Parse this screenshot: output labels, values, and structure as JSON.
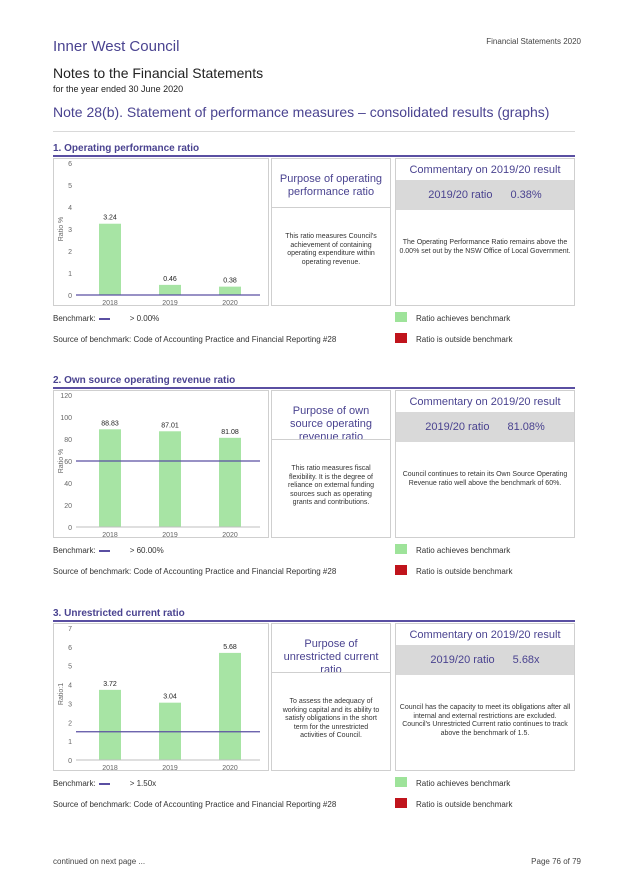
{
  "header": {
    "council": "Inner West Council",
    "report_label": "Financial Statements 2020",
    "notes_title": "Notes to the Financial Statements",
    "notes_subtitle": "for the year ended 30 June 2020",
    "note_heading": "Note 28(b). Statement of performance measures – consolidated results (graphs)"
  },
  "colors": {
    "bar": "#a7e4a4",
    "benchmark_line": "#5a4fa2",
    "legend_achieves": "#9ee39a",
    "legend_outside": "#c0141c",
    "accent": "#4a4390"
  },
  "sections": [
    {
      "title": "1. Operating performance ratio",
      "purpose_title": "Purpose of operating performance ratio",
      "purpose_text": "This ratio measures Council's achievement of containing operating expenditure within operating revenue.",
      "commentary_title": "Commentary on 2019/20 result",
      "ratio_label": "2019/20 ratio",
      "ratio_value": "0.38%",
      "commentary_text": "The Operating Performance Ratio remains above the 0.00% set out by the NSW Office of Local Government.",
      "benchmark_label": "Benchmark:",
      "benchmark_value": "> 0.00%",
      "source": "Source of benchmark: Code of Accounting Practice and Financial Reporting #28",
      "legend_achieves": "Ratio achieves benchmark",
      "legend_outside": "Ratio is outside benchmark"
    },
    {
      "title": "2. Own source operating revenue ratio",
      "purpose_title": "Purpose of own source operating revenue ratio",
      "purpose_text": "This ratio measures fiscal flexibility. It is the degree of reliance on external funding sources such as operating grants and contributions.",
      "commentary_title": "Commentary on 2019/20 result",
      "ratio_label": "2019/20 ratio",
      "ratio_value": "81.08%",
      "commentary_text": "Council continues to retain its Own Source Operating Revenue ratio well above the benchmark of 60%.",
      "benchmark_label": "Benchmark:",
      "benchmark_value": "> 60.00%",
      "source": "Source of benchmark: Code of Accounting Practice and Financial Reporting #28",
      "legend_achieves": "Ratio achieves benchmark",
      "legend_outside": "Ratio is outside benchmark"
    },
    {
      "title": "3. Unrestricted current ratio",
      "purpose_title": "Purpose of unrestricted current ratio",
      "purpose_text": "To assess the adequacy of working capital and its ability to satisfy obligations in the short term for the unrestricted activities of Council.",
      "commentary_title": "Commentary on 2019/20 result",
      "ratio_label": "2019/20 ratio",
      "ratio_value": "5.68x",
      "commentary_text": "Council has the capacity to meet its obligations after all internal and external restrictions are excluded. Council's Unrestricted Current ratio continues to track above the benchmark of 1.5.",
      "benchmark_label": "Benchmark:",
      "benchmark_value": "> 1.50x",
      "source": "Source of benchmark: Code of Accounting Practice and Financial Reporting #28",
      "legend_achieves": "Ratio achieves benchmark",
      "legend_outside": "Ratio is outside benchmark"
    }
  ],
  "chart_data": [
    {
      "type": "bar",
      "categories": [
        "2018",
        "2019",
        "2020"
      ],
      "values": [
        3.24,
        0.46,
        0.38
      ],
      "value_labels": [
        "3.24",
        "0.46",
        "0.38"
      ],
      "ylabel": "Ratio %",
      "ylim": [
        0,
        6
      ],
      "yticks": [
        "0",
        "1",
        "2",
        "3",
        "4",
        "5",
        "6"
      ],
      "benchmark": 0,
      "grid": false
    },
    {
      "type": "bar",
      "categories": [
        "2018",
        "2019",
        "2020"
      ],
      "values": [
        88.83,
        87.01,
        81.08
      ],
      "value_labels": [
        "88.83",
        "87.01",
        "81.08"
      ],
      "ylabel": "Ratio %",
      "ylim": [
        0,
        120
      ],
      "yticks": [
        "0",
        "20",
        "40",
        "60",
        "80",
        "100",
        "120"
      ],
      "benchmark": 60,
      "grid": false
    },
    {
      "type": "bar",
      "categories": [
        "2018",
        "2019",
        "2020"
      ],
      "values": [
        3.72,
        3.04,
        5.68
      ],
      "value_labels": [
        "3.72",
        "3.04",
        "5.68"
      ],
      "ylabel": "Ratio:1",
      "ylim": [
        0,
        7
      ],
      "yticks": [
        "0",
        "1",
        "2",
        "3",
        "4",
        "5",
        "6",
        "7"
      ],
      "benchmark": 1.5,
      "grid": false
    }
  ],
  "footer": {
    "left": "continued on next page ...",
    "right": "Page 76 of 79"
  }
}
